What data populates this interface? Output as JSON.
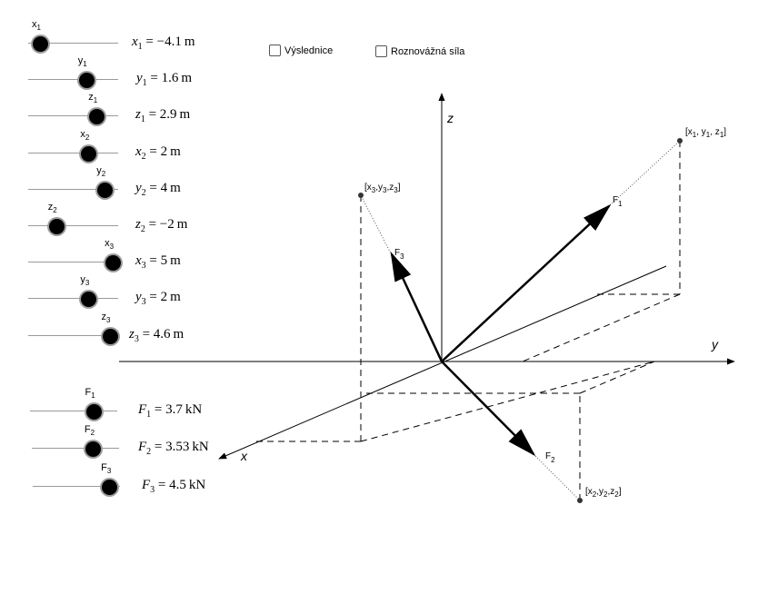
{
  "sliders": [
    {
      "id": "x1",
      "name": "x",
      "sub": "1",
      "label": "x",
      "value": "-4.1",
      "unit": "m",
      "level": 0.09
    },
    {
      "id": "y1",
      "name": "y",
      "sub": "1",
      "label": "y",
      "value": "1.6",
      "unit": "m",
      "level": 0.66
    },
    {
      "id": "z1",
      "name": "z",
      "sub": "1",
      "label": "z",
      "value": "2.9",
      "unit": "m",
      "level": 0.79
    },
    {
      "id": "x2",
      "name": "x",
      "sub": "2",
      "label": "x",
      "value": "2",
      "unit": "m",
      "level": 0.69
    },
    {
      "id": "y2",
      "name": "y",
      "sub": "2",
      "label": "y",
      "value": "4",
      "unit": "m",
      "level": 0.89
    },
    {
      "id": "z2",
      "name": "z",
      "sub": "2",
      "label": "z",
      "value": "-2",
      "unit": "m",
      "level": 0.29
    },
    {
      "id": "x3",
      "name": "x",
      "sub": "3",
      "label": "x",
      "value": "5",
      "unit": "m",
      "level": 0.99
    },
    {
      "id": "y3",
      "name": "y",
      "sub": "3",
      "label": "y",
      "value": "2",
      "unit": "m",
      "level": 0.69
    },
    {
      "id": "z3",
      "name": "z",
      "sub": "3",
      "label": "z",
      "value": "4.6",
      "unit": "m",
      "level": 0.95
    }
  ],
  "force_sliders": [
    {
      "id": "F1",
      "name": "F",
      "sub": "1",
      "label": "F",
      "value": "3.7",
      "unit": "kN",
      "level": 0.75
    },
    {
      "id": "F2",
      "name": "F",
      "sub": "2",
      "label": "F",
      "value": "3.53",
      "unit": "kN",
      "level": 0.72
    },
    {
      "id": "F3",
      "name": "F",
      "sub": "3",
      "label": "F",
      "value": "4.5",
      "unit": "kN",
      "level": 0.92
    }
  ],
  "checkboxes": [
    {
      "label": "Výslednice",
      "checked": false
    },
    {
      "label": "Roznovážná síla",
      "checked": false
    }
  ],
  "axes": {
    "x": "x",
    "y": "y",
    "z": "z"
  },
  "forces": [
    {
      "label": "F",
      "sub": "1"
    },
    {
      "label": "F",
      "sub": "2"
    },
    {
      "label": "F",
      "sub": "3"
    }
  ],
  "points": [
    {
      "text": "[x",
      "parts": [
        "1",
        ", y",
        "1",
        ", z",
        "1",
        "]"
      ]
    },
    {
      "text": "[x",
      "parts": [
        "2",
        ",y",
        "2",
        ",z",
        "2",
        "]"
      ]
    },
    {
      "text": "[x",
      "parts": [
        "3",
        ",y",
        "3",
        ",z",
        "3",
        "]"
      ]
    }
  ],
  "colors": {
    "knob": "#000000",
    "knob_ring": "#9c9c9c",
    "track": "#9a9a9a",
    "vector": "#000000"
  }
}
